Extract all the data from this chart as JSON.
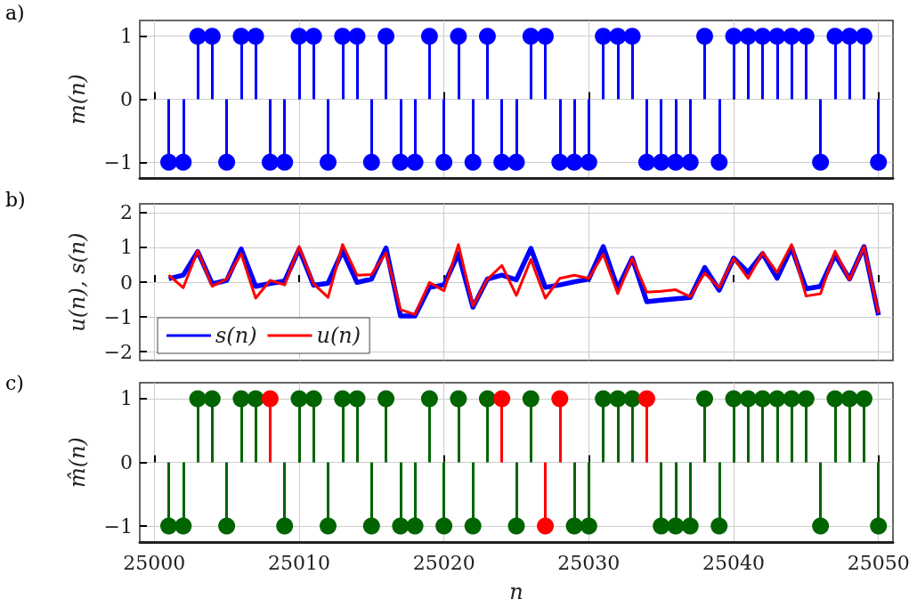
{
  "chart_data": [
    {
      "type": "lollipop",
      "ylabel": "m(n)",
      "annotations": [
        "a)"
      ],
      "marker": "circle",
      "grid": true,
      "tick_labels": "y",
      "x": [
        25001,
        25002,
        25003,
        25004,
        25005,
        25006,
        25007,
        25008,
        25009,
        25010,
        25011,
        25012,
        25013,
        25014,
        25015,
        25016,
        25017,
        25018,
        25019,
        25020,
        25021,
        25022,
        25023,
        25024,
        25025,
        25026,
        25027,
        25028,
        25029,
        25030,
        25031,
        25032,
        25033,
        25034,
        25035,
        25036,
        25037,
        25038,
        25039,
        25040,
        25041,
        25042,
        25043,
        25044,
        25045,
        25046,
        25047,
        25048,
        25049,
        25050
      ],
      "series": [
        {
          "color": "#0000ff",
          "values": [
            -1,
            -1,
            1,
            1,
            -1,
            1,
            1,
            -1,
            -1,
            1,
            1,
            -1,
            1,
            1,
            -1,
            1,
            -1,
            -1,
            1,
            -1,
            1,
            -1,
            1,
            -1,
            -1,
            1,
            1,
            -1,
            -1,
            -1,
            1,
            1,
            1,
            -1,
            -1,
            -1,
            -1,
            1,
            -1,
            1,
            1,
            1,
            1,
            1,
            1,
            -1,
            1,
            1,
            1,
            -1
          ]
        }
      ],
      "xlim": [
        24999,
        25051
      ],
      "xticks": [
        25000,
        25010,
        25020,
        25030,
        25040,
        25050
      ],
      "ylim": [
        -1.25,
        1.25
      ],
      "yticks": [
        -1,
        0,
        1
      ]
    },
    {
      "type": "line",
      "ylabel": "u(n), s(n)",
      "annotations": [
        "b)"
      ],
      "grid": true,
      "tick_labels": "y",
      "legend": "bottom left",
      "x": [
        25001,
        25002,
        25003,
        25004,
        25005,
        25006,
        25007,
        25008,
        25009,
        25010,
        25011,
        25012,
        25013,
        25014,
        25015,
        25016,
        25017,
        25018,
        25019,
        25020,
        25021,
        25022,
        25023,
        25024,
        25025,
        25026,
        25027,
        25028,
        25029,
        25030,
        25031,
        25032,
        25033,
        25034,
        25035,
        25036,
        25037,
        25038,
        25039,
        25040,
        25041,
        25042,
        25043,
        25044,
        25045,
        25046,
        25047,
        25048,
        25049,
        25050
      ],
      "series": [
        {
          "name": "s(n)",
          "color": "#0000ff",
          "values": [
            0.1,
            0.2,
            0.88,
            -0.05,
            0.05,
            0.95,
            -0.12,
            -0.04,
            0.03,
            0.95,
            -0.09,
            -0.03,
            0.9,
            -0.01,
            0.09,
            0.98,
            -0.97,
            -0.97,
            -0.15,
            -0.08,
            0.82,
            -0.72,
            0.09,
            0.2,
            0.07,
            0.97,
            -0.15,
            -0.08,
            0.01,
            0.09,
            1.02,
            -0.18,
            0.69,
            -0.56,
            -0.52,
            -0.48,
            -0.44,
            0.42,
            -0.23,
            0.69,
            0.28,
            0.82,
            0.11,
            0.99,
            -0.19,
            -0.12,
            0.78,
            0.09,
            1.02,
            -0.95
          ]
        },
        {
          "name": "u(n)",
          "color": "#ff0000",
          "values": [
            0.2,
            -0.16,
            0.9,
            -0.12,
            0.09,
            0.82,
            -0.46,
            0.05,
            -0.08,
            1.02,
            -0.05,
            -0.44,
            1.08,
            0.2,
            0.22,
            0.84,
            -0.79,
            -0.93,
            -0.01,
            -0.25,
            1.08,
            -0.68,
            0.08,
            0.48,
            -0.38,
            0.65,
            -0.46,
            0.11,
            0.2,
            0.11,
            0.8,
            -0.33,
            0.68,
            -0.29,
            -0.26,
            -0.22,
            -0.42,
            0.26,
            -0.16,
            0.68,
            0.11,
            0.85,
            0.28,
            1.08,
            -0.4,
            -0.33,
            0.89,
            0.07,
            1.02,
            -0.89
          ]
        }
      ],
      "xlim": [
        24999,
        25051
      ],
      "xticks": [
        25000,
        25010,
        25020,
        25030,
        25040,
        25050
      ],
      "ylim": [
        -2.25,
        2.25
      ],
      "yticks": [
        -2,
        -1,
        0,
        1,
        2
      ]
    },
    {
      "type": "lollipop",
      "ylabel": "m̂(n)",
      "xlabel": "n",
      "annotations": [
        "c)"
      ],
      "marker": "circle",
      "grid": true,
      "x": [
        25001,
        25002,
        25003,
        25004,
        25005,
        25006,
        25007,
        25008,
        25009,
        25010,
        25011,
        25012,
        25013,
        25014,
        25015,
        25016,
        25017,
        25018,
        25019,
        25020,
        25021,
        25022,
        25023,
        25024,
        25025,
        25026,
        25027,
        25028,
        25029,
        25030,
        25031,
        25032,
        25033,
        25034,
        25035,
        25036,
        25037,
        25038,
        25039,
        25040,
        25041,
        25042,
        25043,
        25044,
        25045,
        25046,
        25047,
        25048,
        25049,
        25050
      ],
      "series": [
        {
          "color": "#006400",
          "values": [
            -1,
            -1,
            1,
            1,
            -1,
            1,
            1,
            null,
            -1,
            1,
            1,
            -1,
            1,
            1,
            -1,
            1,
            -1,
            -1,
            1,
            -1,
            1,
            -1,
            1,
            null,
            -1,
            1,
            null,
            null,
            -1,
            -1,
            1,
            1,
            1,
            null,
            -1,
            -1,
            -1,
            1,
            -1,
            1,
            1,
            1,
            1,
            1,
            1,
            -1,
            1,
            1,
            1,
            -1
          ]
        },
        {
          "color": "#ff0000",
          "values": [
            null,
            null,
            null,
            null,
            null,
            null,
            null,
            1,
            null,
            null,
            null,
            null,
            null,
            null,
            null,
            null,
            null,
            null,
            null,
            null,
            null,
            null,
            null,
            1,
            null,
            null,
            -1,
            1,
            null,
            null,
            null,
            null,
            null,
            1,
            null,
            null,
            null,
            null,
            null,
            null,
            null,
            null,
            null,
            null,
            null,
            null,
            null,
            null,
            null,
            null
          ]
        }
      ],
      "xlim": [
        24999,
        25051
      ],
      "xticks": [
        25000,
        25010,
        25020,
        25030,
        25040,
        25050
      ],
      "ylim": [
        -1.25,
        1.25
      ],
      "yticks": [
        -1,
        0,
        1
      ]
    }
  ]
}
